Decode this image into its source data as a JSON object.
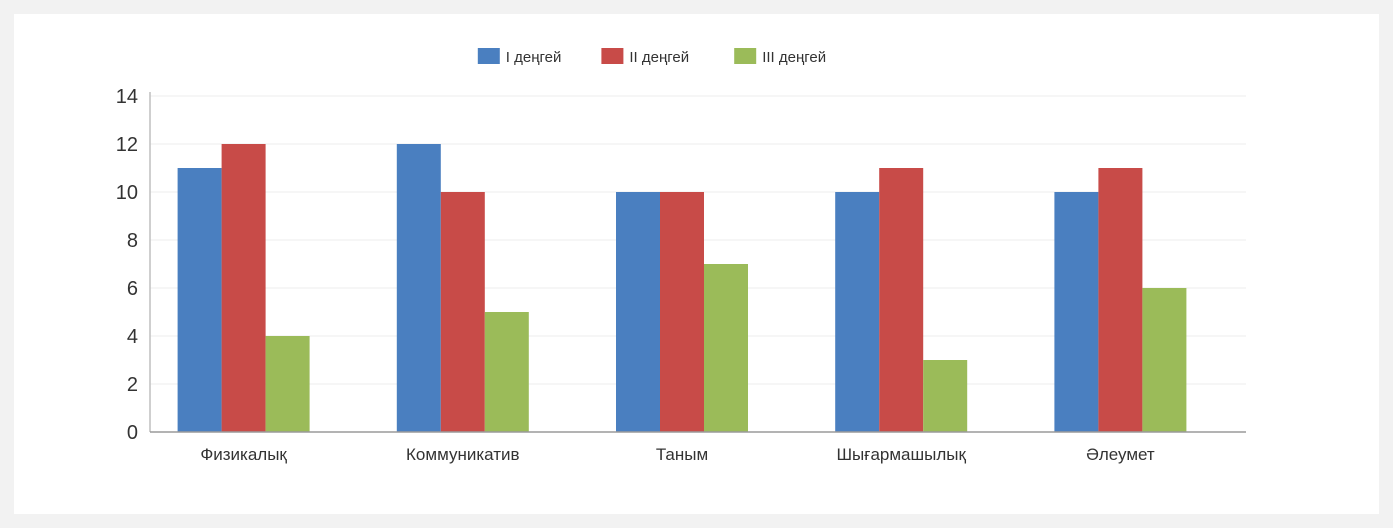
{
  "chart_data": {
    "type": "bar",
    "title": "",
    "xlabel": "",
    "ylabel": "",
    "categories": [
      "Физикалық",
      "Коммуникатив",
      "Таным",
      "Шығармашылық",
      "Әлеумет"
    ],
    "series": [
      {
        "name": "I деңгей",
        "color": "#4a7fc0",
        "values": [
          11,
          12,
          10,
          10,
          10
        ]
      },
      {
        "name": "II деңгей",
        "color": "#c84b48",
        "values": [
          12,
          10,
          10,
          11,
          11
        ]
      },
      {
        "name": "III деңгей",
        "color": "#9bbb59",
        "values": [
          4,
          5,
          7,
          3,
          6
        ]
      }
    ],
    "ylim": [
      0,
      14
    ],
    "yticks": [
      "0",
      "2",
      "4",
      "6",
      "8",
      "10",
      "12",
      "14"
    ],
    "grid": true,
    "legend_position": "top-center"
  }
}
